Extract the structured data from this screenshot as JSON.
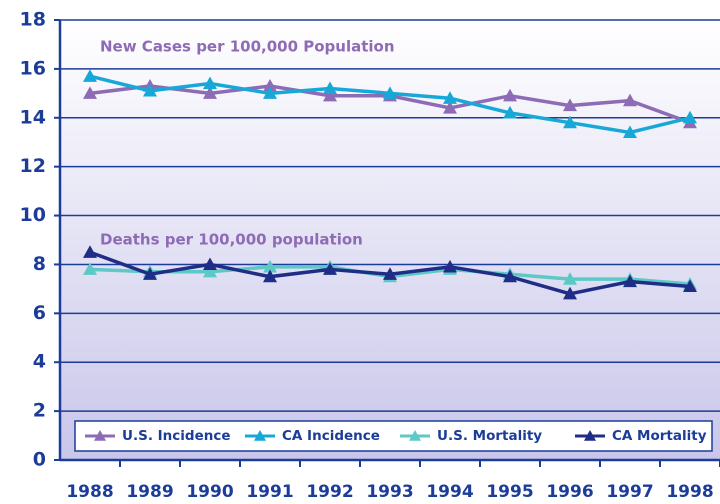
{
  "chart_data": {
    "type": "line",
    "categories": [
      "1988",
      "1989",
      "1990",
      "1991",
      "1992",
      "1993",
      "1994",
      "1995",
      "1996",
      "1997",
      "1998"
    ],
    "series": [
      {
        "name": "U.S. Incidence",
        "color": "#8e6bb5",
        "values": [
          15.0,
          15.3,
          15.0,
          15.3,
          14.9,
          14.9,
          14.4,
          14.9,
          14.5,
          14.7,
          13.8
        ]
      },
      {
        "name": "CA Incidence",
        "color": "#17a8d8",
        "values": [
          15.7,
          15.1,
          15.4,
          15.0,
          15.2,
          15.0,
          14.8,
          14.2,
          13.8,
          13.4,
          14.0
        ]
      },
      {
        "name": "U.S. Mortality",
        "color": "#5cc9c6",
        "values": [
          7.8,
          7.7,
          7.7,
          7.9,
          7.9,
          7.5,
          7.8,
          7.6,
          7.4,
          7.4,
          7.2
        ]
      },
      {
        "name": "CA Mortality",
        "color": "#1f2d86",
        "values": [
          8.5,
          7.6,
          8.0,
          7.5,
          7.8,
          7.6,
          7.9,
          7.5,
          6.8,
          7.3,
          7.1
        ]
      }
    ],
    "annotations": [
      "New Cases per 100,000 Population",
      "Deaths per 100,000 population"
    ],
    "ylim": [
      0,
      18
    ],
    "yticks": [
      0,
      2,
      4,
      6,
      8,
      10,
      12,
      14,
      16,
      18
    ],
    "grid": true,
    "legend": "bottom"
  }
}
